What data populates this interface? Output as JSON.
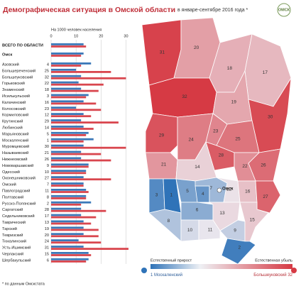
{
  "chart_data": {
    "type": "bar",
    "title": "Демографическая ситуация в Омской области",
    "subtitle": "в январе-сентябре 2016 года *",
    "logo": "ОМСК",
    "axis_label": "На 1000 человек населения",
    "categories": [
      "ВСЕГО ПО ОБЛАСТИ",
      "Омск",
      "Азовский",
      "Большереченский",
      "Большеуковский",
      "Горьковский",
      "Знаменский",
      "Исилькульский",
      "Калачинский",
      "Колосовский",
      "Кормиловский",
      "Крутинский",
      "Любинский",
      "Марьяновский",
      "Москаленский",
      "Муромцевский",
      "Называевский",
      "Нижнеомский",
      "Нововаршавский",
      "Одесский",
      "Оконешниковский",
      "Омский",
      "Павлоградский",
      "Полтавский",
      "Русско-Полянский",
      "Саргатский",
      "Седельниковский",
      "Таврический",
      "Тарский",
      "Тевризский",
      "Тюкалинский",
      "Усть-Ишимский",
      "Черлакский",
      "Шербакульский"
    ],
    "ranks": [
      null,
      null,
      4,
      25,
      32,
      22,
      18,
      3,
      16,
      23,
      12,
      29,
      14,
      5,
      1,
      30,
      21,
      26,
      9,
      10,
      27,
      7,
      11,
      8,
      2,
      28,
      17,
      13,
      19,
      20,
      24,
      31,
      15,
      6
    ],
    "series": [
      {
        "color": "#3b78b8",
        "values": [
          13,
          13,
          16,
          10,
          12,
          11,
          12,
          15,
          13,
          10,
          13,
          12,
          13,
          15,
          17,
          13,
          12,
          12,
          15,
          14,
          13,
          13,
          14,
          14,
          16,
          12,
          12,
          13,
          13,
          13,
          11,
          13,
          15,
          15
        ]
      },
      {
        "color": "#d9464e",
        "values": [
          14,
          12,
          12,
          24,
          30,
          21,
          19,
          14,
          18,
          20,
          16,
          27,
          17,
          14,
          13,
          30,
          20,
          24,
          15,
          14,
          24,
          13,
          15,
          14,
          12,
          22,
          18,
          16,
          19,
          19,
          20,
          31,
          16,
          14
        ]
      }
    ],
    "xlim": [
      0,
      33
    ],
    "xticks": [
      0,
      10,
      20,
      30
    ],
    "grid": true,
    "map_colors": {
      "low": "#2f73b8",
      "high": "#d63a44"
    },
    "legend": {
      "low": "Естественный прирост",
      "high": "Естественная убыль"
    },
    "note": "* по данным Омскстата"
  }
}
